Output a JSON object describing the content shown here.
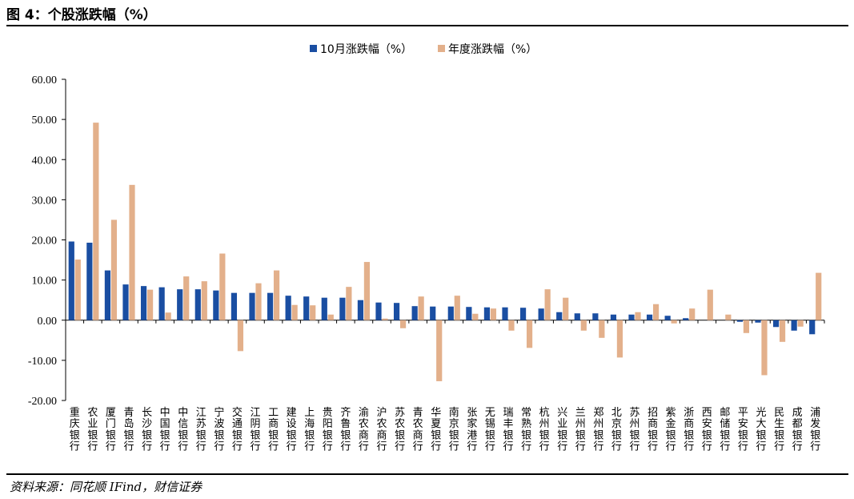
{
  "figure": {
    "title": "图 4：个股涨跌幅（%）",
    "source": "资料来源：同花顺 IFind，财信证券"
  },
  "colors": {
    "oct": "#1a4ea2",
    "ytd": "#e3b08b",
    "axis": "#000000"
  },
  "chart_data": {
    "type": "bar",
    "ylim": [
      -20,
      60
    ],
    "yticks": [
      "60.00",
      "50.00",
      "40.00",
      "30.00",
      "20.00",
      "10.00",
      "0.00",
      "-10.00",
      "-20.00"
    ],
    "ytick_values": [
      60,
      50,
      40,
      30,
      20,
      10,
      0,
      -10,
      -20
    ],
    "legend_position": "top-center",
    "categories": [
      "重庆银行",
      "农业银行",
      "厦门银行",
      "青岛银行",
      "长沙银行",
      "中国银行",
      "中信银行",
      "江苏银行",
      "宁波银行",
      "交通银行",
      "江阴银行",
      "工商银行",
      "建设银行",
      "上海银行",
      "贵阳银行",
      "齐鲁银行",
      "渝农商行",
      "沪农商行",
      "苏农银行",
      "青农商行",
      "华夏银行",
      "南京银行",
      "张家港行",
      "无锡银行",
      "瑞丰银行",
      "常熟银行",
      "杭州银行",
      "兴业银行",
      "兰州银行",
      "郑州银行",
      "北京银行",
      "苏州银行",
      "招商银行",
      "紫金银行",
      "浙商银行",
      "西安银行",
      "邮储银行",
      "平安银行",
      "光大银行",
      "民生银行",
      "成都银行",
      "浦发银行"
    ],
    "series": [
      {
        "name": "10月涨跌幅（%）",
        "values": [
          19.6,
          19.3,
          12.4,
          8.9,
          8.5,
          8.2,
          7.7,
          7.7,
          7.4,
          6.8,
          6.8,
          6.8,
          6.1,
          5.9,
          5.6,
          5.6,
          5.0,
          4.4,
          4.3,
          3.5,
          3.4,
          3.4,
          3.3,
          3.2,
          3.2,
          3.1,
          2.9,
          2.0,
          1.7,
          1.7,
          1.4,
          1.4,
          1.4,
          1.1,
          0.5,
          0.0,
          0.0,
          -0.4,
          -0.6,
          -1.7,
          -2.6,
          -3.5
        ]
      },
      {
        "name": "年度涨跌幅（%）",
        "values": [
          15.1,
          49.2,
          25.0,
          33.7,
          7.6,
          1.9,
          10.9,
          9.7,
          16.6,
          -7.7,
          9.2,
          12.4,
          3.8,
          3.7,
          1.4,
          8.3,
          14.5,
          0.4,
          -2.0,
          5.9,
          -15.2,
          6.1,
          1.6,
          2.9,
          -2.6,
          -6.9,
          7.7,
          5.6,
          -2.6,
          -4.4,
          -9.3,
          2.0,
          4.0,
          -0.8,
          2.9,
          7.6,
          1.4,
          -3.2,
          -13.7,
          -5.4,
          -1.6,
          11.8
        ]
      }
    ]
  }
}
